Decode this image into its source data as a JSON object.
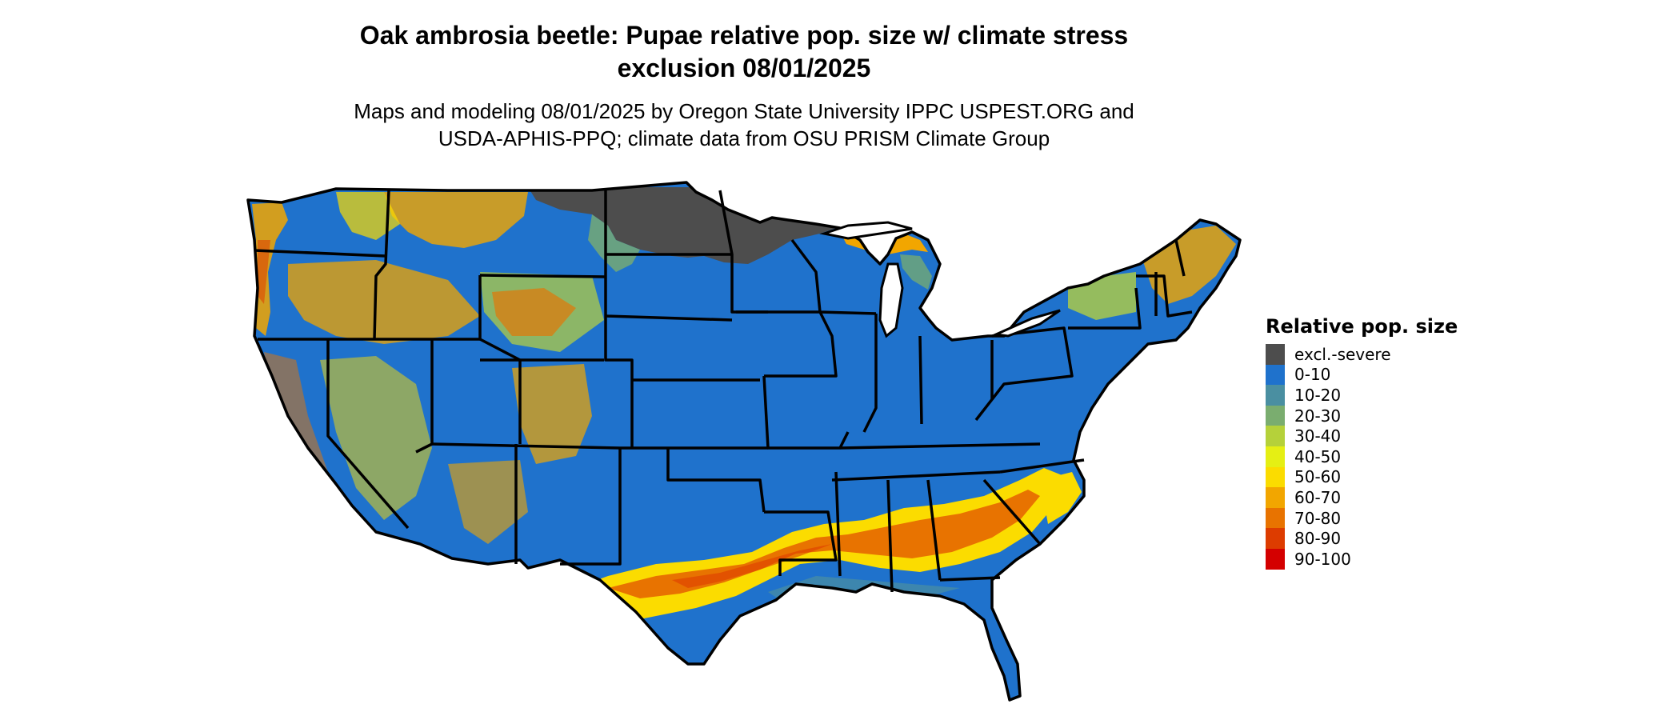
{
  "title": {
    "line1": "Oak ambrosia beetle: Pupae relative pop. size w/ climate stress",
    "line2": "exclusion 08/01/2025"
  },
  "subtitle": {
    "line1": "Maps and modeling 08/01/2025 by Oregon State University IPPC USPEST.ORG and",
    "line2": "USDA-APHIS-PPQ; climate data from OSU PRISM Climate Group"
  },
  "legend": {
    "title": "Relative pop. size",
    "items": [
      {
        "label": "excl.-severe",
        "color": "#4d4d4d"
      },
      {
        "label": "0-10",
        "color": "#1f72cc"
      },
      {
        "label": "10-20",
        "color": "#4a8fa1"
      },
      {
        "label": "20-30",
        "color": "#7aad6f"
      },
      {
        "label": "30-40",
        "color": "#b5d13a"
      },
      {
        "label": "40-50",
        "color": "#e5ef14"
      },
      {
        "label": "50-60",
        "color": "#fbdc00"
      },
      {
        "label": "60-70",
        "color": "#f2a600"
      },
      {
        "label": "70-80",
        "color": "#e87300"
      },
      {
        "label": "80-90",
        "color": "#dd3c00"
      },
      {
        "label": "90-100",
        "color": "#d40000"
      }
    ]
  }
}
